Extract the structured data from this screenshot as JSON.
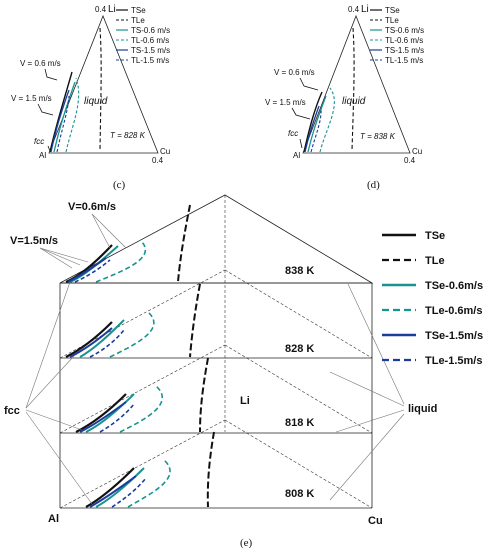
{
  "series": [
    {
      "key": "tse",
      "label": "TSe",
      "color": "#111111",
      "dashed": false
    },
    {
      "key": "tle",
      "label": "TLe",
      "color": "#111111",
      "dashed": true
    },
    {
      "key": "tse06",
      "label": "TSe-0.6m/s",
      "color": "#17948f",
      "dashed": false
    },
    {
      "key": "tle06",
      "label": "TLe-0.6m/s",
      "color": "#17948f",
      "dashed": true
    },
    {
      "key": "tse15",
      "label": "TSe-1.5m/s",
      "color": "#1c3c9c",
      "dashed": false
    },
    {
      "key": "tle15",
      "label": "TLe-1.5m/s",
      "color": "#1c3c9c",
      "dashed": true
    }
  ],
  "panel_c": {
    "caption": "(c)",
    "temperature_label": "T = 828 K",
    "legend": [
      "TSe",
      "TLe",
      "TS-0.6 m/s",
      "TL-0.6 m/s",
      "TS-1.5 m/s",
      "TL-1.5 m/s"
    ],
    "li_label": "Li",
    "li_tick": "0.4",
    "cu_label": "Cu",
    "cu_tick": "0.4",
    "al_label": "Al",
    "liquid_label": "liquid",
    "fcc_label": "fcc",
    "v06_label": "V = 0.6 m/s",
    "v15_label": "V = 1.5 m/s"
  },
  "panel_d": {
    "caption": "(d)",
    "temperature_label": "T = 838 K",
    "legend": [
      "TSe",
      "TLe",
      "TS-0.6 m/s",
      "TL-0.6 m/s",
      "TS-1.5 m/s",
      "TL-1.5 m/s"
    ],
    "li_label": "Li",
    "li_tick": "0.4",
    "cu_label": "Cu",
    "cu_tick": "0.4",
    "al_label": "Al",
    "liquid_label": "liquid",
    "fcc_label": "fcc",
    "v06_label": "V = 0.6 m/s",
    "v15_label": "V = 1.5 m/s"
  },
  "panel_e": {
    "caption": "(e)",
    "legend": [
      "TSe",
      "TLe",
      "TSe-0.6m/s",
      "TLe-0.6m/s",
      "TSe-1.5m/s",
      "TLe-1.5m/s"
    ],
    "temperatures": [
      "838 K",
      "828 K",
      "818 K",
      "808 K"
    ],
    "v06_label": "V=0.6m/s",
    "v15_label": "V=1.5m/s",
    "fcc_label": "fcc",
    "liquid_label": "liquid",
    "li_label": "Li",
    "al_label": "Al",
    "cu_label": "Cu"
  }
}
